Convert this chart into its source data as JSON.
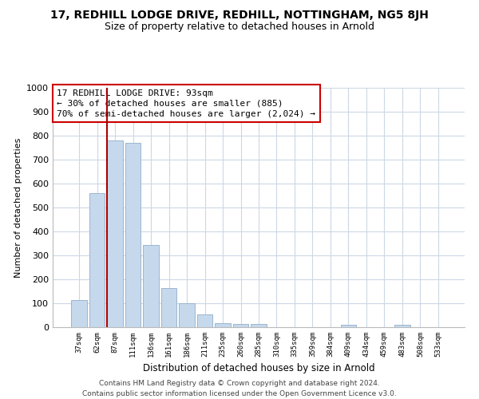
{
  "title": "17, REDHILL LODGE DRIVE, REDHILL, NOTTINGHAM, NG5 8JH",
  "subtitle": "Size of property relative to detached houses in Arnold",
  "xlabel": "Distribution of detached houses by size in Arnold",
  "ylabel": "Number of detached properties",
  "bar_labels": [
    "37sqm",
    "62sqm",
    "87sqm",
    "111sqm",
    "136sqm",
    "161sqm",
    "186sqm",
    "211sqm",
    "235sqm",
    "260sqm",
    "285sqm",
    "310sqm",
    "335sqm",
    "359sqm",
    "384sqm",
    "409sqm",
    "434sqm",
    "459sqm",
    "483sqm",
    "508sqm",
    "533sqm"
  ],
  "bar_values": [
    115,
    560,
    780,
    770,
    345,
    165,
    100,
    52,
    18,
    15,
    15,
    0,
    0,
    0,
    0,
    10,
    0,
    0,
    10,
    0,
    0
  ],
  "bar_color": "#c6d9ec",
  "bar_edge_color": "#9ab5cf",
  "property_line_idx": 2,
  "property_line_color": "#aa0000",
  "ylim": [
    0,
    1000
  ],
  "yticks": [
    0,
    100,
    200,
    300,
    400,
    500,
    600,
    700,
    800,
    900,
    1000
  ],
  "annotation_title": "17 REDHILL LODGE DRIVE: 93sqm",
  "annotation_line1": "← 30% of detached houses are smaller (885)",
  "annotation_line2": "70% of semi-detached houses are larger (2,024) →",
  "annotation_box_color": "#ffffff",
  "annotation_box_edge": "#cc0000",
  "footer_line1": "Contains HM Land Registry data © Crown copyright and database right 2024.",
  "footer_line2": "Contains public sector information licensed under the Open Government Licence v3.0.",
  "background_color": "#ffffff",
  "grid_color": "#ccd8e4"
}
